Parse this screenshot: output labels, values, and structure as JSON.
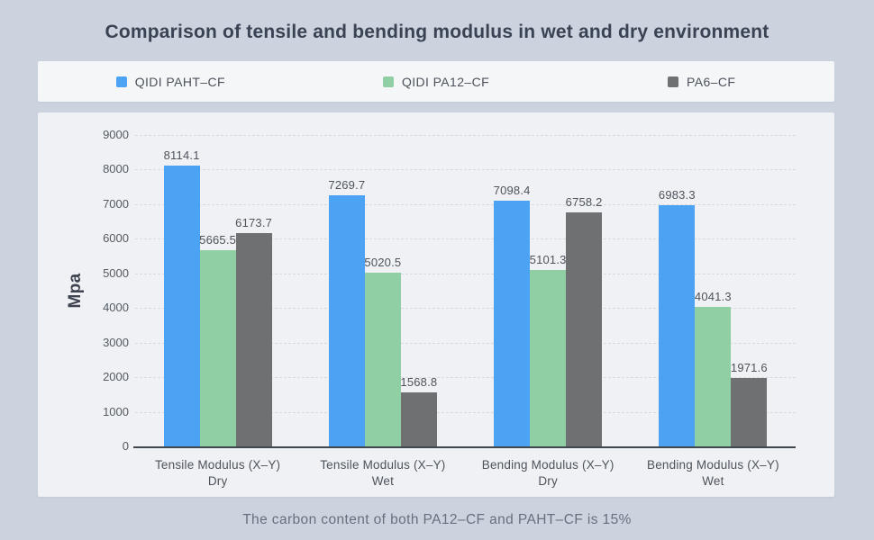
{
  "title": "Comparison of tensile and bending modulus in wet and dry environment",
  "footer": "The carbon content of both PA12–CF and PAHT–CF is 15%",
  "chart_data": {
    "type": "bar",
    "title": "Comparison of tensile and bending modulus in wet and dry environment",
    "ylabel": "Mpa",
    "xlabel": "",
    "ylim": [
      0,
      9000
    ],
    "ytick_step": 1000,
    "grid": "dashed-horizontal",
    "legend_position": "top",
    "categories": [
      {
        "label": "Tensile Modulus (X–Y)",
        "condition": "Dry"
      },
      {
        "label": "Tensile Modulus (X–Y)",
        "condition": "Wet"
      },
      {
        "label": "Bending Modulus (X–Y)",
        "condition": "Dry"
      },
      {
        "label": "Bending Modulus (X–Y)",
        "condition": "Wet"
      }
    ],
    "series": [
      {
        "name": "QIDI PAHT–CF",
        "color": "#4da3f3",
        "values": [
          8114.1,
          7269.7,
          7098.4,
          6983.3
        ]
      },
      {
        "name": "QIDI PA12–CF",
        "color": "#90cea4",
        "values": [
          5665.5,
          5020.5,
          5101.3,
          4041.3
        ]
      },
      {
        "name": "PA6–CF",
        "color": "#6f7071",
        "values": [
          6173.7,
          1568.8,
          6758.2,
          1971.6
        ]
      }
    ],
    "footnote": "The carbon content of both PA12–CF and PAHT–CF is 15%",
    "colors": {
      "page_background": "#ccd3df",
      "panel_background": "#eff1f4",
      "legend_background": "#f5f6f8",
      "title_text": "#3a4353",
      "axis_line": "#41474f",
      "gridline": "#d6d9dd",
      "tick_text": "#555b63",
      "footer_text": "#67707e"
    }
  }
}
